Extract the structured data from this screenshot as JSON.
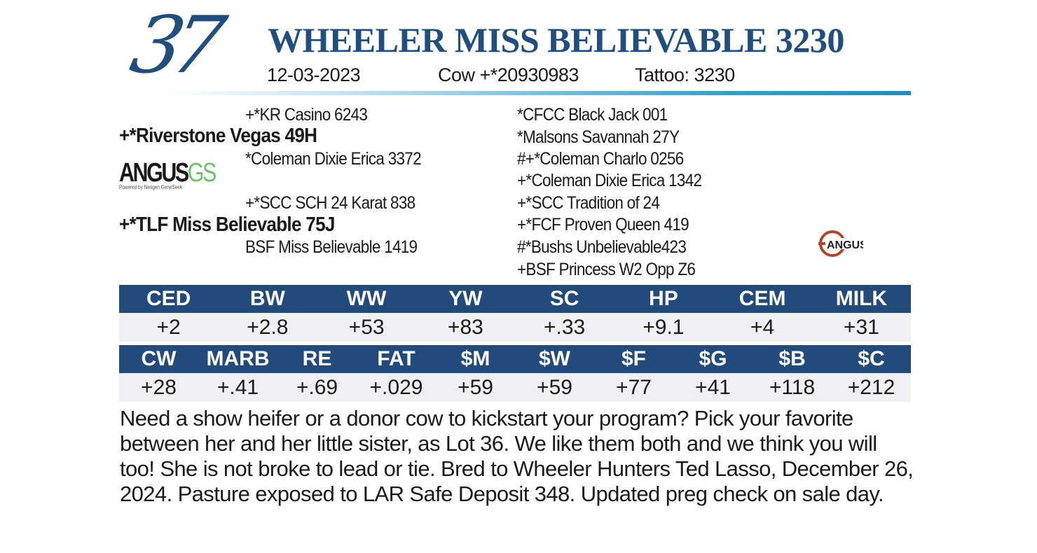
{
  "lot": "37",
  "name": "WHEELER MISS BELIEVABLE 3230",
  "birth_date": "12-03-2023",
  "registration": "Cow +*20930983",
  "tattoo": "Tattoo: 3230",
  "pedigree": {
    "sire": "+*Riverstone Vegas 49H",
    "sire_sire": "+*KR Casino 6243",
    "sire_dam": "*Coleman Dixie Erica 3372",
    "dam": "+*TLF Miss Believable 75J",
    "dam_sire": "+*SCC SCH 24 Karat 838",
    "dam_dam": "BSF Miss Believable 1419",
    "third_gen": [
      "*CFCC Black Jack 001",
      "*Malsons Savannah 27Y",
      "#+*Coleman Charlo 0256",
      "+*Coleman Dixie Erica 1342",
      "+*SCC Tradition of 24",
      "+*FCF Proven Queen 419",
      "#*Bushs Unbelievable423",
      "+BSF Princess W2 Opp Z6"
    ]
  },
  "logos": {
    "angus_gs": "ANGUS",
    "angus_gs_suffix": "GS",
    "angus_gs_tagline": "Powered by Neogen GeneSeek",
    "angus": "ANGUS"
  },
  "epd1": {
    "headers": [
      "CED",
      "BW",
      "WW",
      "YW",
      "SC",
      "HP",
      "CEM",
      "MILK"
    ],
    "values": [
      "+2",
      "+2.8",
      "+53",
      "+83",
      "+.33",
      "+9.1",
      "+4",
      "+31"
    ]
  },
  "epd2": {
    "headers": [
      "CW",
      "MARB",
      "RE",
      "FAT",
      "$M",
      "$W",
      "$F",
      "$G",
      "$B",
      "$C"
    ],
    "values": [
      "+28",
      "+.41",
      "+.69",
      "+.029",
      "+59",
      "+59",
      "+77",
      "+41",
      "+118",
      "+212"
    ]
  },
  "description": "Need a show heifer or a donor cow to kickstart your program? Pick your favorite between her and her little sister, as Lot 36. We like them both and we think you will too! She is not broke to lead or tie. Bred to Wheeler Hunters Ted Lasso, December 26, 2024. Pasture exposed to LAR Safe Deposit 348. Updated preg check on sale day."
}
